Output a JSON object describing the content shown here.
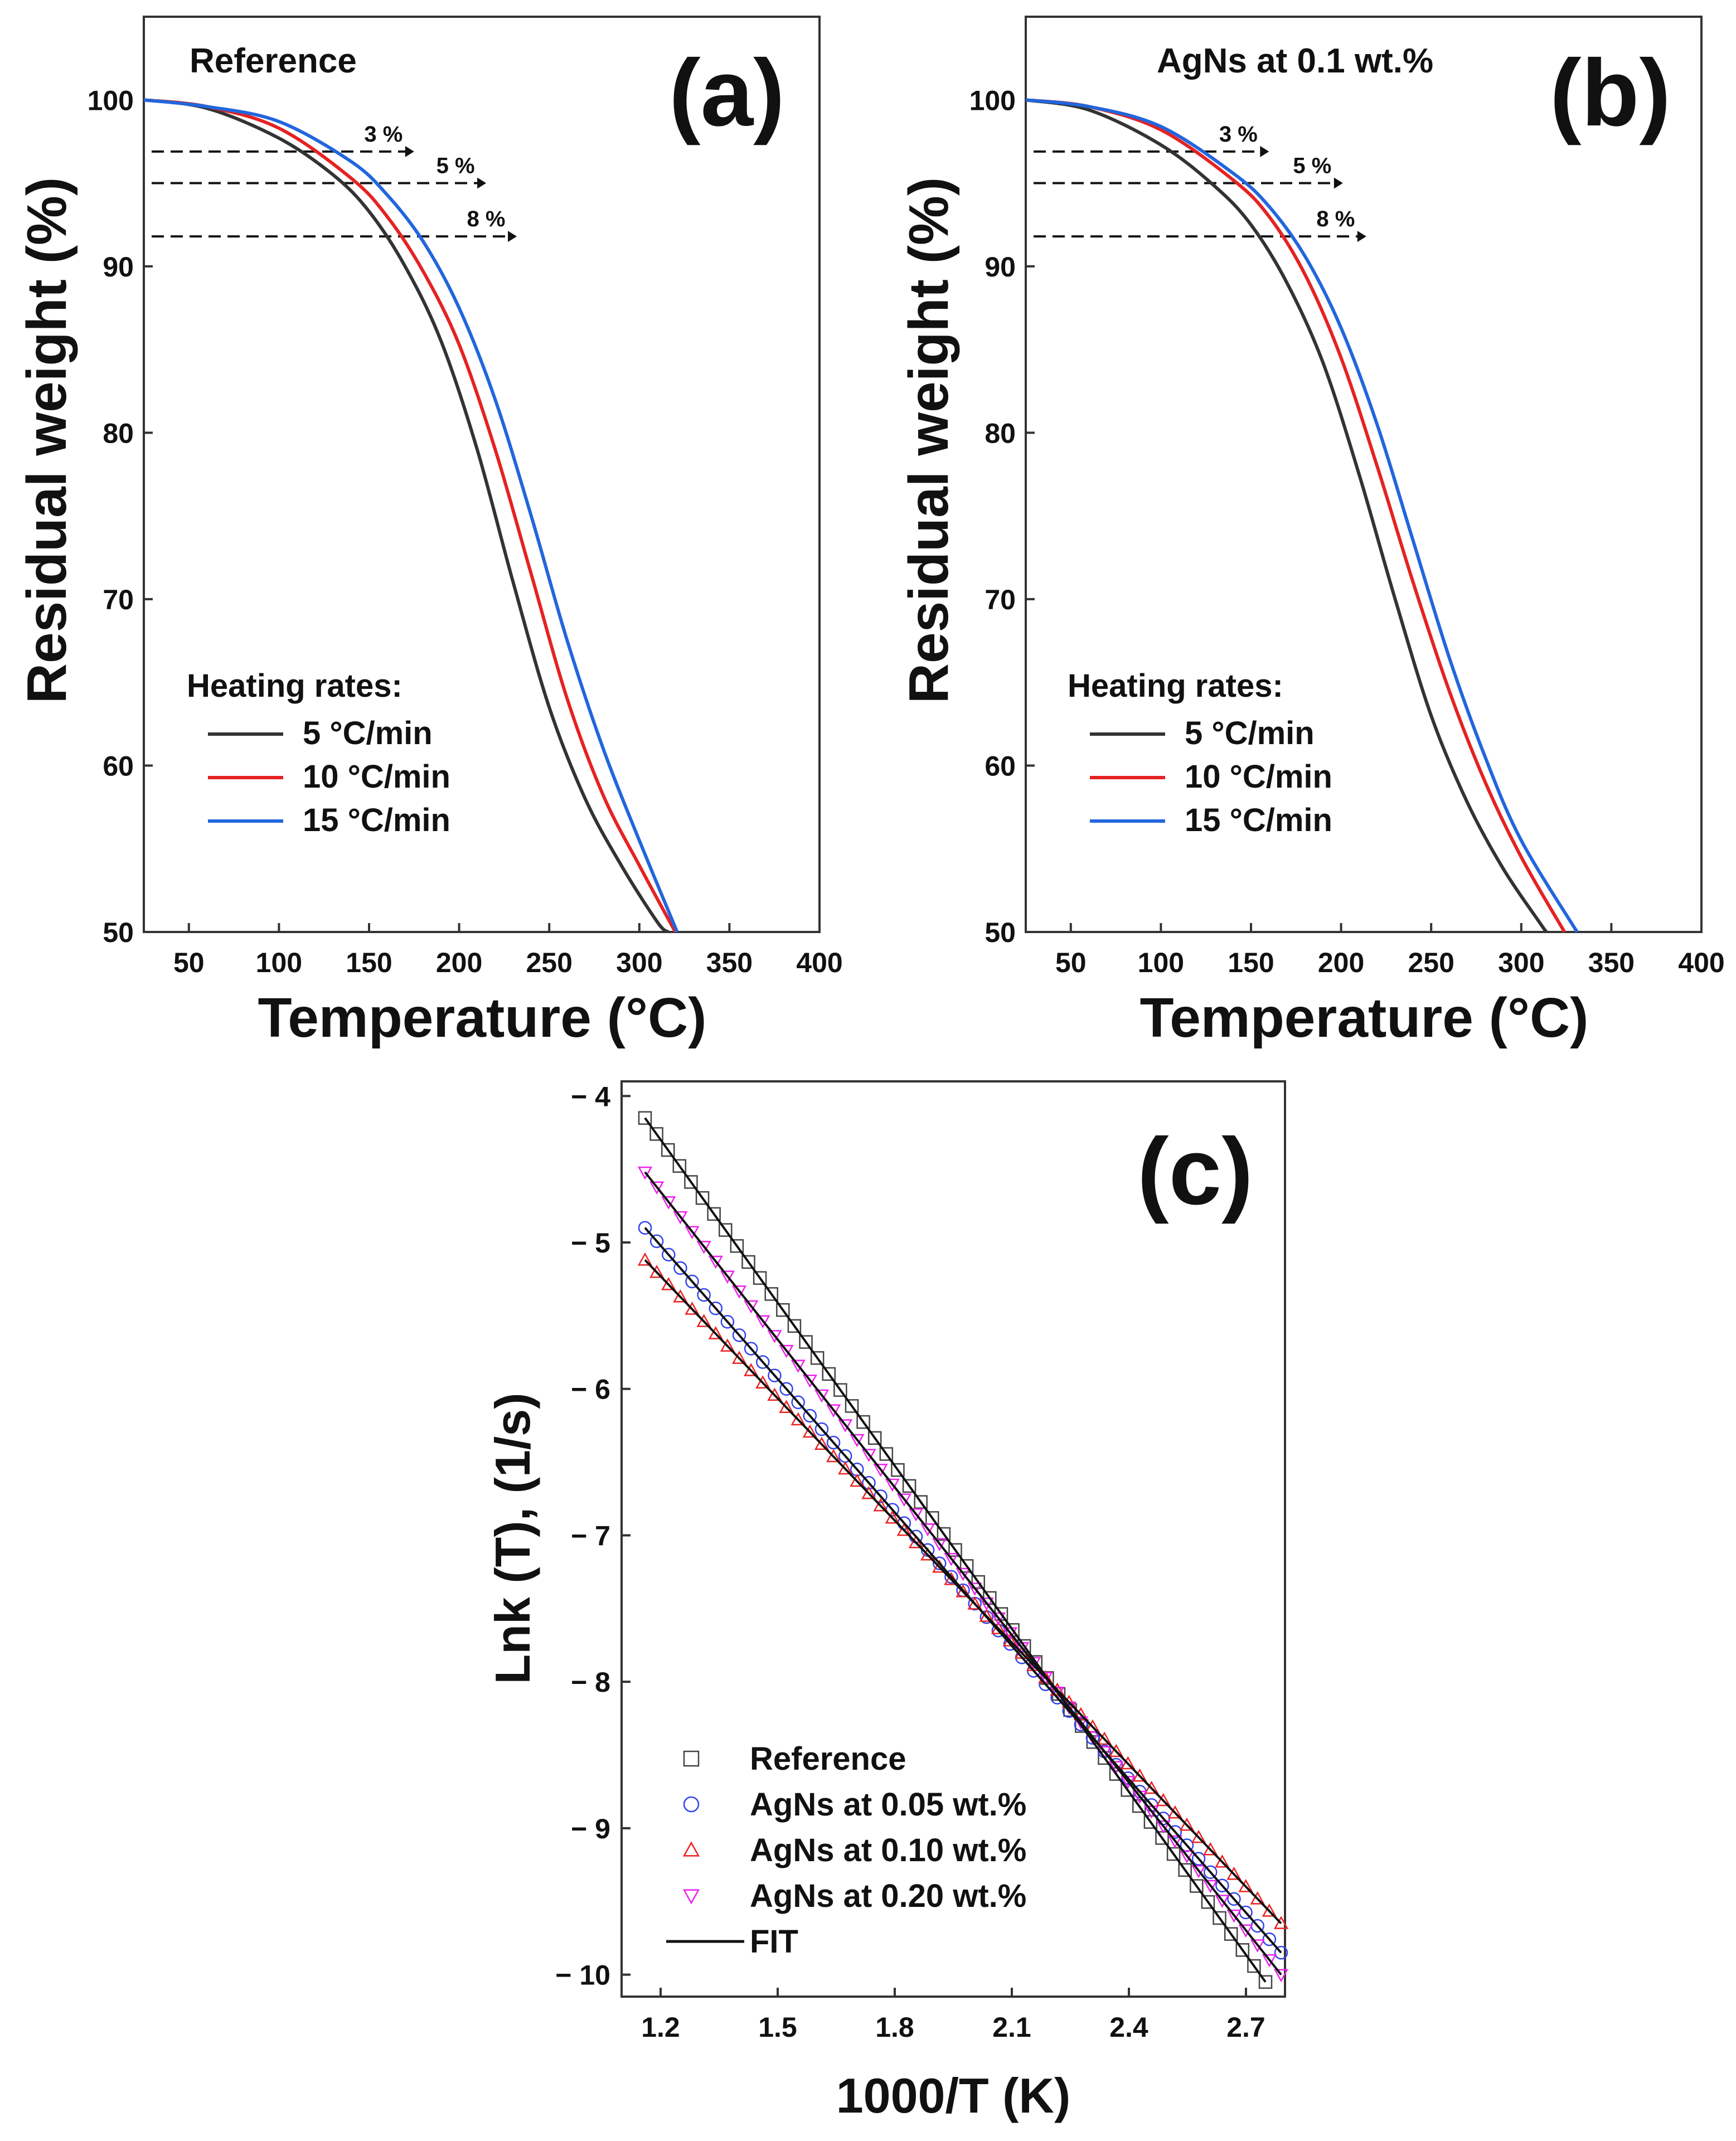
{
  "chart_data": [
    {
      "panel": "a",
      "type": "line",
      "panel_tag": "(a)",
      "title": "Reference",
      "xlabel": "Temperature (°C)",
      "ylabel": "Residual weight (%)",
      "xlim": [
        25,
        400
      ],
      "ylim": [
        50,
        105
      ],
      "xticks": [
        50,
        100,
        150,
        200,
        250,
        300,
        350,
        400
      ],
      "yticks": [
        50,
        60,
        70,
        80,
        90,
        100
      ],
      "legend_title": "Heating rates:",
      "series": [
        {
          "name": "5 °C/min",
          "color": "#333333",
          "x": [
            25,
            60,
            100,
            130,
            150,
            170,
            190,
            210,
            230,
            250,
            270,
            290,
            310,
            316
          ],
          "y": [
            100,
            99.5,
            97.7,
            95.5,
            93.3,
            90.0,
            85.5,
            79.0,
            71.0,
            63.5,
            58.0,
            54.0,
            50.6,
            50.0
          ]
        },
        {
          "name": "10 °C/min",
          "color": "#e52222",
          "x": [
            25,
            60,
            100,
            140,
            160,
            180,
            200,
            220,
            240,
            260,
            280,
            300,
            320
          ],
          "y": [
            100,
            99.6,
            98.3,
            95.3,
            93.0,
            89.7,
            85.3,
            79.0,
            71.5,
            64.0,
            58.2,
            54.0,
            50.0
          ]
        },
        {
          "name": "15 °C/min",
          "color": "#2266dd",
          "x": [
            25,
            60,
            100,
            140,
            160,
            180,
            200,
            220,
            240,
            260,
            280,
            300,
            321
          ],
          "y": [
            100,
            99.6,
            98.7,
            96.3,
            94.3,
            91.5,
            87.5,
            82.0,
            75.0,
            67.5,
            61.0,
            55.5,
            50.0
          ]
        }
      ],
      "conversion_lines": [
        {
          "label": "3 %",
          "y": 96.9,
          "x_end": 175
        },
        {
          "label": "5 %",
          "y": 95.0,
          "x_end": 215
        },
        {
          "label": "8 %",
          "y": 91.8,
          "x_end": 232
        }
      ]
    },
    {
      "panel": "b",
      "type": "line",
      "panel_tag": "(b)",
      "title": "AgNs at 0.1 wt.%",
      "xlabel": "Temperature (°C)",
      "ylabel": "Residual weight (%)",
      "xlim": [
        25,
        400
      ],
      "ylim": [
        50,
        105
      ],
      "xticks": [
        50,
        100,
        150,
        200,
        250,
        300,
        350,
        400
      ],
      "yticks": [
        50,
        60,
        70,
        80,
        90,
        100
      ],
      "legend_title": "Heating rates:",
      "series": [
        {
          "name": "5 °C/min",
          "color": "#333333",
          "x": [
            25,
            60,
            100,
            130,
            150,
            170,
            190,
            210,
            230,
            250,
            270,
            290,
            310,
            314
          ],
          "y": [
            100,
            99.4,
            97.3,
            94.8,
            92.5,
            89.0,
            84.2,
            77.5,
            70.0,
            63.0,
            57.8,
            53.8,
            50.6,
            50.0
          ]
        },
        {
          "name": "10 °C/min",
          "color": "#e52222",
          "x": [
            25,
            60,
            100,
            140,
            160,
            180,
            200,
            220,
            240,
            260,
            280,
            300,
            324
          ],
          "y": [
            100,
            99.6,
            98.2,
            95.2,
            93.0,
            89.5,
            84.5,
            78.0,
            71.0,
            64.5,
            59.0,
            54.5,
            50.0
          ]
        },
        {
          "name": "15 °C/min",
          "color": "#2266dd",
          "x": [
            25,
            60,
            100,
            140,
            160,
            180,
            200,
            220,
            240,
            260,
            280,
            300,
            331
          ],
          "y": [
            100,
            99.6,
            98.4,
            95.6,
            93.6,
            90.6,
            86.3,
            80.5,
            73.5,
            66.5,
            60.5,
            55.5,
            50.0
          ]
        }
      ],
      "conversion_lines": [
        {
          "label": "3 %",
          "y": 96.9,
          "x_end": 160
        },
        {
          "label": "5 %",
          "y": 95.0,
          "x_end": 201
        },
        {
          "label": "8 %",
          "y": 91.8,
          "x_end": 214
        }
      ]
    },
    {
      "panel": "c",
      "type": "scatter",
      "panel_tag": "(c)",
      "xlabel": "1000/T (K)",
      "ylabel": "Lnk (T), (1/s)",
      "xlim": [
        1.1,
        2.8
      ],
      "ylim": [
        -10.15,
        -3.9
      ],
      "xticks": [
        1.2,
        1.5,
        1.8,
        2.1,
        2.4,
        2.7
      ],
      "yticks": [
        -10,
        -9,
        -8,
        -7,
        -6,
        -5,
        -4
      ],
      "series": [
        {
          "name": "Reference",
          "marker": "square",
          "color": "#444444",
          "x_range": [
            1.16,
            2.75
          ],
          "y_range": [
            -4.15,
            -10.05
          ]
        },
        {
          "name": "AgNs at 0.05 wt.%",
          "marker": "circle",
          "color": "#3344ee",
          "x_range": [
            1.16,
            2.79
          ],
          "y_range": [
            -4.9,
            -9.85
          ]
        },
        {
          "name": "AgNs at 0.10 wt.%",
          "marker": "triangle-up",
          "color": "#ee2222",
          "x_range": [
            1.16,
            2.79
          ],
          "y_range": [
            -5.12,
            -9.65
          ]
        },
        {
          "name": "AgNs at 0.20 wt.%",
          "marker": "triangle-down",
          "color": "#ee22ee",
          "x_range": [
            1.16,
            2.79
          ],
          "y_range": [
            -4.52,
            -10.0
          ]
        }
      ],
      "fit_label": "FIT",
      "fit_color": "#111111"
    }
  ]
}
